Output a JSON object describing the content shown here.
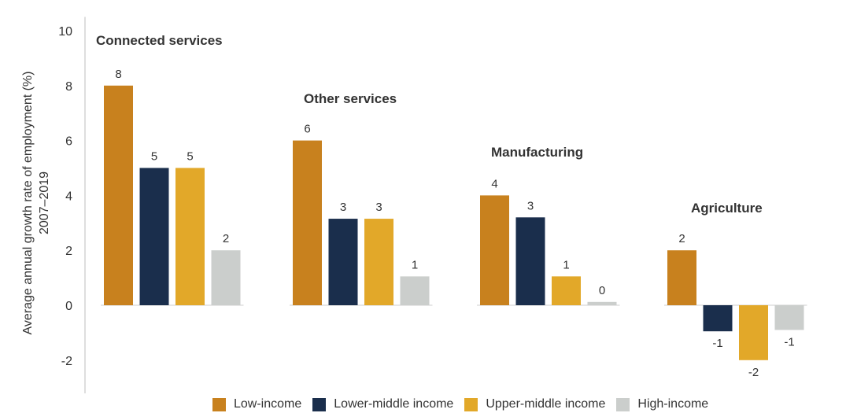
{
  "chart_data": {
    "type": "bar",
    "ylabel_line1": "Average annual growth rate of employment (%)",
    "ylabel_line2": "2007–2019",
    "ylim": [
      -3.5,
      10.5
    ],
    "yticks": [
      -2,
      0,
      2,
      4,
      6,
      8,
      10
    ],
    "grid": false,
    "legend_position": "bottom",
    "categories": [
      "Connected services",
      "Other services",
      "Manufacturing",
      "Agriculture"
    ],
    "series": [
      {
        "name": "Low-income",
        "color": "#C8811E",
        "values": [
          8,
          6,
          4,
          2
        ],
        "labels": [
          "8",
          "6",
          "4",
          "2"
        ]
      },
      {
        "name": "Lower-middle income",
        "color": "#1A2E4C",
        "values": [
          5,
          3.15,
          3.2,
          -0.95
        ],
        "labels": [
          "5",
          "3",
          "3",
          "-1"
        ]
      },
      {
        "name": "Upper-middle income",
        "color": "#E2A829",
        "values": [
          5,
          3.15,
          1.05,
          -2
        ],
        "labels": [
          "5",
          "3",
          "1",
          "-2"
        ]
      },
      {
        "name": "High-income",
        "color": "#CBCECC",
        "values": [
          2,
          1.05,
          0.12,
          -0.9
        ],
        "labels": [
          "2",
          "1",
          "0",
          "-1"
        ]
      }
    ]
  }
}
